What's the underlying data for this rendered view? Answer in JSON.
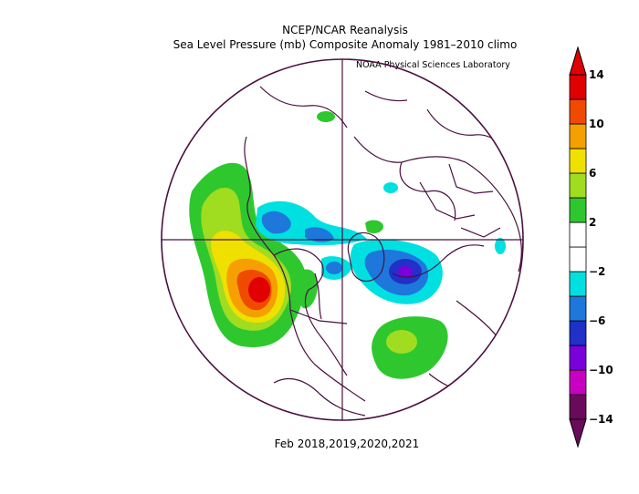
{
  "header": {
    "title": "NCEP/NCAR Reanalysis",
    "subtitle": "Sea Level Pressure (mb) Composite Anomaly 1981–2010 climo",
    "credit": "NOAA Physical Sciences Laboratory"
  },
  "footer": {
    "period": "Feb 2018,2019,2020,2021"
  },
  "colorbar": {
    "colors": [
      "#6a0a5a",
      "#c800c0",
      "#7a00dc",
      "#2030c8",
      "#1e78dc",
      "#00e0e0",
      "#ffffff",
      "#ffffff",
      "#2ec82e",
      "#a0dc20",
      "#f0e000",
      "#f5a000",
      "#f04a00",
      "#e00000"
    ],
    "tick_labels": [
      "14",
      "10",
      "6",
      "2",
      "−2",
      "−6",
      "−10",
      "−14"
    ]
  },
  "map": {
    "projection": "north-polar-stereographic",
    "contour_levels": [
      -14,
      -12,
      -10,
      -8,
      -6,
      -4,
      -2,
      2,
      4,
      6,
      8,
      10,
      12,
      14
    ],
    "anomalies": [
      {
        "name": "North Pacific high",
        "sign": "positive",
        "peak_mb": 12
      },
      {
        "name": "North Atlantic high",
        "sign": "positive",
        "peak_mb": 6
      },
      {
        "name": "Scandinavian / Arctic low",
        "sign": "negative",
        "peak_mb": -10
      },
      {
        "name": "Siberian low",
        "sign": "negative",
        "peak_mb": -6
      },
      {
        "name": "Central Arctic low",
        "sign": "negative",
        "peak_mb": -4
      }
    ]
  }
}
